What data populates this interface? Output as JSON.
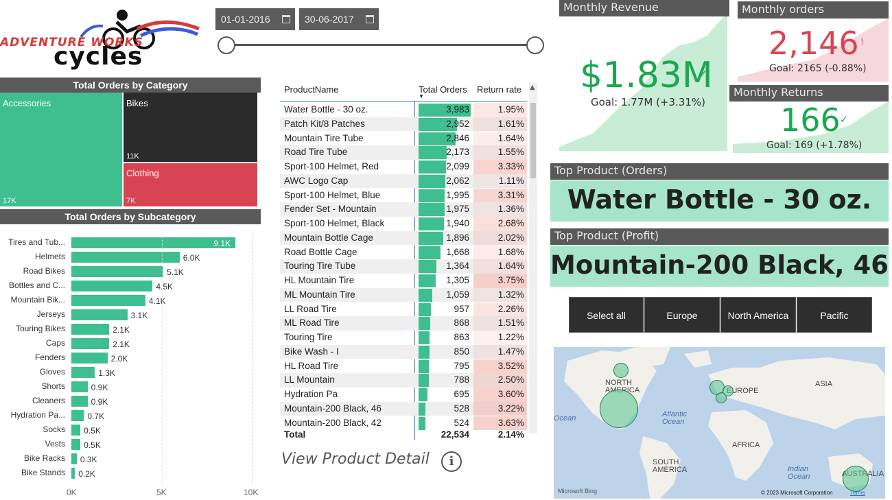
{
  "logo": {
    "line1": "ADVENTURE WORKS",
    "line2": "cycles"
  },
  "date_filter": {
    "start": "01-01-2016",
    "end": "30-06-2017"
  },
  "category_chart": {
    "title": "Total Orders by Category",
    "tiles": [
      {
        "name": "Accessories",
        "value": "17K",
        "color": "#3fbf8f"
      },
      {
        "name": "Bikes",
        "value": "11K",
        "color": "#2b2b2b"
      },
      {
        "name": "Clothing",
        "value": "7K",
        "color": "#d94452"
      }
    ]
  },
  "subcategory_chart": {
    "title": "Total Orders by Subcategory",
    "axis_ticks": [
      "0K",
      "5K",
      "10K"
    ],
    "xlim": [
      0,
      10000
    ],
    "bars": [
      {
        "label": "Tires and Tub...",
        "value": 9100,
        "value_label": "9.1K"
      },
      {
        "label": "Helmets",
        "value": 6000,
        "value_label": "6.0K"
      },
      {
        "label": "Road Bikes",
        "value": 5100,
        "value_label": "5.1K"
      },
      {
        "label": "Bottles and C...",
        "value": 4500,
        "value_label": "4.5K"
      },
      {
        "label": "Mountain Bik...",
        "value": 4100,
        "value_label": "4.1K"
      },
      {
        "label": "Jerseys",
        "value": 3100,
        "value_label": "3.1K"
      },
      {
        "label": "Touring Bikes",
        "value": 2100,
        "value_label": "2.1K"
      },
      {
        "label": "Caps",
        "value": 2100,
        "value_label": "2.1K"
      },
      {
        "label": "Fenders",
        "value": 2000,
        "value_label": "2.0K"
      },
      {
        "label": "Gloves",
        "value": 1300,
        "value_label": "1.3K"
      },
      {
        "label": "Shorts",
        "value": 900,
        "value_label": "0.9K"
      },
      {
        "label": "Cleaners",
        "value": 900,
        "value_label": "0.9K"
      },
      {
        "label": "Hydration Pa...",
        "value": 700,
        "value_label": "0.7K"
      },
      {
        "label": "Socks",
        "value": 500,
        "value_label": "0.5K"
      },
      {
        "label": "Vests",
        "value": 500,
        "value_label": "0.5K"
      },
      {
        "label": "Bike Racks",
        "value": 300,
        "value_label": "0.3K"
      },
      {
        "label": "Bike Stands",
        "value": 200,
        "value_label": "0.2K"
      }
    ]
  },
  "product_table": {
    "columns": [
      "ProductName",
      "Total Orders",
      "Return rate"
    ],
    "max_orders": 3983,
    "rows": [
      {
        "name": "Water Bottle - 30 oz.",
        "orders": "3,983",
        "orders_num": 3983,
        "rate": "1.95%",
        "rate_num": 1.95
      },
      {
        "name": "Patch Kit/8 Patches",
        "orders": "2,952",
        "orders_num": 2952,
        "rate": "1.61%",
        "rate_num": 1.61
      },
      {
        "name": "Mountain Tire Tube",
        "orders": "2,846",
        "orders_num": 2846,
        "rate": "1.64%",
        "rate_num": 1.64
      },
      {
        "name": "Road Tire Tube",
        "orders": "2,173",
        "orders_num": 2173,
        "rate": "1.55%",
        "rate_num": 1.55
      },
      {
        "name": "Sport-100 Helmet, Red",
        "orders": "2,099",
        "orders_num": 2099,
        "rate": "3.33%",
        "rate_num": 3.33
      },
      {
        "name": "AWC Logo Cap",
        "orders": "2,062",
        "orders_num": 2062,
        "rate": "1.11%",
        "rate_num": 1.11
      },
      {
        "name": "Sport-100 Helmet, Blue",
        "orders": "1,995",
        "orders_num": 1995,
        "rate": "3.31%",
        "rate_num": 3.31
      },
      {
        "name": "Fender Set - Mountain",
        "orders": "1,975",
        "orders_num": 1975,
        "rate": "1.36%",
        "rate_num": 1.36
      },
      {
        "name": "Sport-100 Helmet, Black",
        "orders": "1,940",
        "orders_num": 1940,
        "rate": "2.68%",
        "rate_num": 2.68
      },
      {
        "name": "Mountain Bottle Cage",
        "orders": "1,896",
        "orders_num": 1896,
        "rate": "2.02%",
        "rate_num": 2.02
      },
      {
        "name": "Road Bottle Cage",
        "orders": "1,668",
        "orders_num": 1668,
        "rate": "1.68%",
        "rate_num": 1.68
      },
      {
        "name": "Touring Tire Tube",
        "orders": "1,364",
        "orders_num": 1364,
        "rate": "1.64%",
        "rate_num": 1.64
      },
      {
        "name": "HL Mountain Tire",
        "orders": "1,305",
        "orders_num": 1305,
        "rate": "3.75%",
        "rate_num": 3.75
      },
      {
        "name": "ML Mountain Tire",
        "orders": "1,059",
        "orders_num": 1059,
        "rate": "1.32%",
        "rate_num": 1.32
      },
      {
        "name": "LL Road Tire",
        "orders": "957",
        "orders_num": 957,
        "rate": "2.26%",
        "rate_num": 2.26
      },
      {
        "name": "ML Road Tire",
        "orders": "868",
        "orders_num": 868,
        "rate": "1.51%",
        "rate_num": 1.51
      },
      {
        "name": "Touring Tire",
        "orders": "863",
        "orders_num": 863,
        "rate": "1.22%",
        "rate_num": 1.22
      },
      {
        "name": "Bike Wash - I",
        "orders": "850",
        "orders_num": 850,
        "rate": "1.47%",
        "rate_num": 1.47
      },
      {
        "name": "HL Road Tire",
        "orders": "795",
        "orders_num": 795,
        "rate": "3.52%",
        "rate_num": 3.52
      },
      {
        "name": "LL Mountain",
        "orders": "788",
        "orders_num": 788,
        "rate": "2.50%",
        "rate_num": 2.5
      },
      {
        "name": "Hydration Pa",
        "orders": "695",
        "orders_num": 695,
        "rate": "3.60%",
        "rate_num": 3.6
      },
      {
        "name": "Mountain-200 Black, 46",
        "orders": "528",
        "orders_num": 528,
        "rate": "3.22%",
        "rate_num": 3.22
      },
      {
        "name": "Mountain-200 Black, 42",
        "orders": "524",
        "orders_num": 524,
        "rate": "3.63%",
        "rate_num": 3.63
      }
    ],
    "total": {
      "label": "Total",
      "orders": "22,534",
      "rate": "2.14%"
    }
  },
  "view_detail": {
    "label": "View Product Detail",
    "icon": "info-icon"
  },
  "kpis": {
    "revenue": {
      "title": "Monthly Revenue",
      "value": "$1.83M",
      "goal": "Goal: 1.77M (+3.31%)",
      "color": "#1aa84f",
      "status_icon": "check-icon"
    },
    "orders": {
      "title": "Monthly orders",
      "value": "2,146",
      "goal": "Goal: 2165 (-0.88%)",
      "color": "#d94452",
      "status_icon": "exclamation-icon",
      "status_glyph": "!"
    },
    "returns": {
      "title": "Monthly Returns",
      "value": "166",
      "goal": "Goal: 169 (+1.78%)",
      "color": "#1aa84f",
      "status_icon": "check-icon"
    }
  },
  "top_products": {
    "orders": {
      "title": "Top Product (Orders)",
      "value": "Water Bottle - 30 oz."
    },
    "profit": {
      "title": "Top Product (Profit)",
      "value": "Mountain-200 Black, 46"
    }
  },
  "region_slicer": [
    "Select all",
    "Europe",
    "North America",
    "Pacific"
  ],
  "map": {
    "labels": {
      "north_america": [
        "NORTH",
        "AMERICA"
      ],
      "europe": "EUROPE",
      "asia": "ASIA",
      "africa": "AFRICA",
      "south_america": [
        "SOUTH",
        "AMERICA"
      ],
      "australia": "AUSTRALIA",
      "atlantic": [
        "Atlantic",
        "Ocean"
      ],
      "indian": [
        "Indian",
        "Ocean"
      ],
      "ocean_left": "Ocean"
    },
    "brand": "Microsoft Bing",
    "copyright": "© 2023 Microsoft Corporation",
    "terms": "Terms"
  }
}
